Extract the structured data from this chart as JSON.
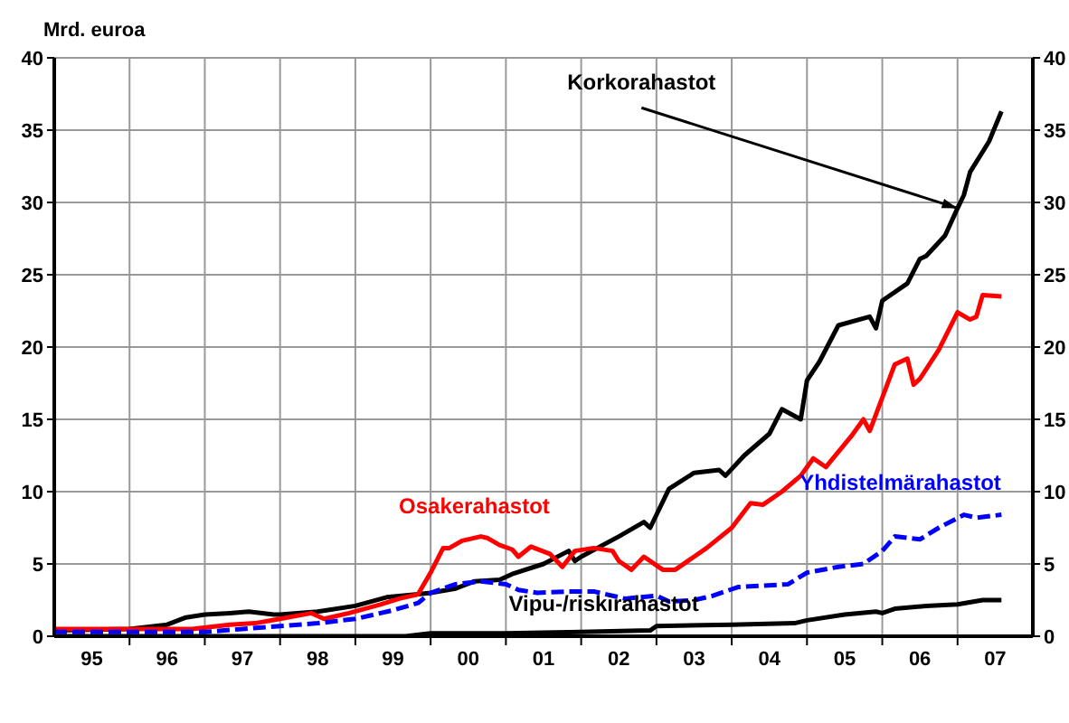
{
  "chart_data": {
    "type": "line",
    "ylabel": "Mrd. euroa",
    "xlim": [
      "1995-01",
      "2008-01"
    ],
    "xticks": [
      {
        "value": "1995-07",
        "label": "95"
      },
      {
        "value": "1996-01",
        "label": null
      },
      {
        "value": "1996-07",
        "label": "96"
      },
      {
        "value": "1997-01",
        "label": null
      },
      {
        "value": "1997-07",
        "label": "97"
      },
      {
        "value": "1998-01",
        "label": null
      },
      {
        "value": "1998-07",
        "label": "98"
      },
      {
        "value": "1999-01",
        "label": null
      },
      {
        "value": "1999-07",
        "label": "99"
      },
      {
        "value": "2000-01",
        "label": null
      },
      {
        "value": "2000-07",
        "label": "00"
      },
      {
        "value": "2001-01",
        "label": null
      },
      {
        "value": "2001-07",
        "label": "01"
      },
      {
        "value": "2002-01",
        "label": null
      },
      {
        "value": "2002-07",
        "label": "02"
      },
      {
        "value": "2003-01",
        "label": null
      },
      {
        "value": "2003-07",
        "label": "03"
      },
      {
        "value": "2004-01",
        "label": null
      },
      {
        "value": "2004-07",
        "label": "04"
      },
      {
        "value": "2005-01",
        "label": null
      },
      {
        "value": "2005-07",
        "label": "05"
      },
      {
        "value": "2006-01",
        "label": null
      },
      {
        "value": "2006-07",
        "label": "06"
      },
      {
        "value": "2007-01",
        "label": null
      },
      {
        "value": "2007-07",
        "label": "07"
      }
    ],
    "ylim": [
      0,
      40
    ],
    "yticks": [
      0,
      5,
      10,
      15,
      20,
      25,
      30,
      35,
      40
    ],
    "y2lim": [
      0,
      40
    ],
    "y2ticks": [
      0,
      5,
      10,
      15,
      20,
      25,
      30,
      35,
      40
    ],
    "grid": true,
    "marker": "none",
    "annotations": [
      {
        "text": "Korkorahastot",
        "x": "2007-01",
        "y": 29.6
      }
    ],
    "series": [
      {
        "color": "#000000",
        "line_style": "solid",
        "x": [
          "1995-01",
          "1996-01",
          "1996-07",
          "1996-10",
          "1997-01",
          "1997-05",
          "1997-08",
          "1997-12",
          "1998-01",
          "1998-07",
          "1999-01",
          "1999-06",
          "1999-11",
          "2000-01",
          "2000-05",
          "2000-08",
          "2000-12",
          "2001-02",
          "2001-07",
          "2001-11",
          "2001-12",
          "2002-01",
          "2002-07",
          "2002-11",
          "2002-12",
          "2003-03",
          "2003-07",
          "2003-11",
          "2003-12",
          "2004-03",
          "2004-07",
          "2004-09",
          "2004-12",
          "2005-01",
          "2005-03",
          "2005-06",
          "2005-11",
          "2005-12",
          "2006-01",
          "2006-05",
          "2006-07",
          "2006-08",
          "2006-11",
          "2007-01",
          "2007-02",
          "2007-03",
          "2007-06",
          "2007-08"
        ],
        "values": [
          0.4,
          0.5,
          0.8,
          1.3,
          1.5,
          1.6,
          1.7,
          1.5,
          1.5,
          1.7,
          2.1,
          2.7,
          2.9,
          3.0,
          3.3,
          3.8,
          3.9,
          4.3,
          5.0,
          5.9,
          5.2,
          5.5,
          6.9,
          7.9,
          7.5,
          10.2,
          11.3,
          11.5,
          11.1,
          12.5,
          14.0,
          15.7,
          15.0,
          17.7,
          19.0,
          21.5,
          22.1,
          21.3,
          23.2,
          24.4,
          26.1,
          26.3,
          27.7,
          29.6,
          30.5,
          32.1,
          34.2,
          36.3
        ]
      },
      {
        "name": "Osakerahastot",
        "color": "#ff0000",
        "line_style": "solid",
        "x": [
          "1995-01",
          "1996-01",
          "1996-11",
          "1997-05",
          "1997-09",
          "1998-01",
          "1998-06",
          "1998-08",
          "1998-12",
          "1999-05",
          "1999-08",
          "1999-11",
          "2000-01",
          "2000-03",
          "2000-04",
          "2000-06",
          "2000-09",
          "2000-10",
          "2000-12",
          "2001-02",
          "2001-03",
          "2001-05",
          "2001-08",
          "2001-10",
          "2001-12",
          "2002-03",
          "2002-06",
          "2002-07",
          "2002-09",
          "2002-11",
          "2003-02",
          "2003-04",
          "2003-07",
          "2003-09",
          "2004-01",
          "2004-04",
          "2004-06",
          "2004-09",
          "2004-12",
          "2005-02",
          "2005-04",
          "2005-08",
          "2005-10",
          "2005-11",
          "2006-03",
          "2006-05",
          "2006-06",
          "2006-07",
          "2006-10",
          "2007-01",
          "2007-03",
          "2007-04",
          "2007-05",
          "2007-08"
        ],
        "values": [
          0.5,
          0.5,
          0.5,
          0.8,
          0.9,
          1.2,
          1.6,
          1.2,
          1.6,
          2.2,
          2.6,
          2.9,
          4.4,
          6.1,
          6.1,
          6.6,
          6.9,
          6.8,
          6.3,
          6.0,
          5.5,
          6.2,
          5.7,
          4.8,
          5.9,
          6.1,
          5.9,
          5.2,
          4.6,
          5.5,
          4.6,
          4.6,
          5.5,
          6.1,
          7.5,
          9.2,
          9.1,
          10.0,
          11.1,
          12.3,
          11.7,
          13.8,
          15.0,
          14.2,
          18.8,
          19.2,
          17.4,
          17.8,
          19.8,
          22.4,
          21.9,
          22.1,
          23.6,
          23.5
        ]
      },
      {
        "name": "Yhdistelmärahastot",
        "color": "#0000ff",
        "line_style": "dashed",
        "x": [
          "1995-01",
          "1996-01",
          "1997-01",
          "1997-07",
          "1998-01",
          "1998-07",
          "1999-01",
          "1999-07",
          "1999-11",
          "2000-01",
          "2000-05",
          "2000-09",
          "2001-01",
          "2001-03",
          "2001-06",
          "2001-11",
          "2002-03",
          "2002-08",
          "2003-01",
          "2003-03",
          "2003-07",
          "2003-10",
          "2004-02",
          "2004-06",
          "2004-10",
          "2005-01",
          "2005-06",
          "2005-10",
          "2006-01",
          "2006-03",
          "2006-07",
          "2006-10",
          "2007-02",
          "2007-04",
          "2007-08"
        ],
        "values": [
          0.3,
          0.3,
          0.3,
          0.5,
          0.7,
          0.9,
          1.2,
          1.8,
          2.3,
          3.0,
          3.6,
          3.8,
          3.6,
          3.2,
          3.0,
          3.1,
          3.1,
          2.6,
          2.8,
          2.4,
          2.5,
          2.8,
          3.4,
          3.5,
          3.6,
          4.4,
          4.8,
          5.0,
          5.9,
          6.9,
          6.7,
          7.5,
          8.4,
          8.2,
          8.4
        ]
      },
      {
        "name": "Vipu-/riskirahastot",
        "color": "#000000",
        "line_style": "solid",
        "x": [
          "1995-01",
          "1999-09",
          "2000-01",
          "2001-01",
          "2002-01",
          "2002-12",
          "2003-01",
          "2004-01",
          "2004-11",
          "2005-01",
          "2005-07",
          "2005-12",
          "2006-01",
          "2006-03",
          "2006-08",
          "2007-01",
          "2007-05",
          "2007-08"
        ],
        "values": [
          0,
          0,
          0.2,
          0.2,
          0.3,
          0.4,
          0.7,
          0.8,
          0.9,
          1.1,
          1.5,
          1.7,
          1.6,
          1.9,
          2.1,
          2.2,
          2.5,
          2.5
        ]
      }
    ]
  }
}
